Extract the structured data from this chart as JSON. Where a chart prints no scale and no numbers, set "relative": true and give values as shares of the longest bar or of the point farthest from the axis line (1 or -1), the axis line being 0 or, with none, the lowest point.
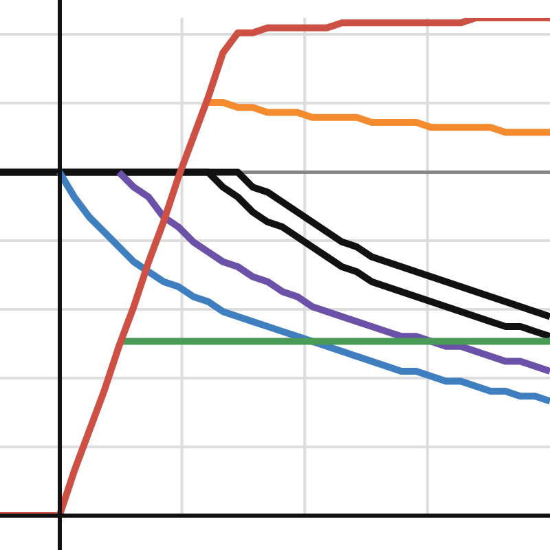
{
  "chart_data": {
    "type": "line",
    "relative": true,
    "grid": true,
    "line_style": "solid",
    "categories": [
      null,
      null,
      null,
      null,
      null,
      null,
      null,
      null,
      null,
      null,
      null,
      null,
      null,
      null,
      null,
      null,
      null,
      null,
      null,
      null,
      null,
      null,
      null,
      null,
      null,
      null,
      null,
      null,
      null,
      null,
      null,
      null,
      null,
      null,
      null,
      null,
      null,
      null
    ],
    "ref_lines": [
      {
        "axis": "y",
        "value": 0.69,
        "color": "#888888"
      }
    ],
    "series": [
      {
        "color": "#111111",
        "values": [
          0.69,
          0.69,
          0.69,
          0.69,
          0.69,
          0.69,
          0.69,
          0.69,
          0.69,
          0.69,
          0.69,
          0.69,
          0.69,
          0.69,
          0.69,
          0.66,
          0.64,
          0.61,
          0.59,
          0.58,
          0.56,
          0.54,
          0.52,
          0.5,
          0.49,
          0.47,
          0.46,
          0.45,
          0.44,
          0.43,
          0.42,
          0.41,
          0.4,
          0.39,
          0.38,
          0.38,
          0.37,
          0.36
        ]
      },
      {
        "color": "#111111",
        "values": [
          0.69,
          0.69,
          0.69,
          0.69,
          0.69,
          0.69,
          0.69,
          0.69,
          0.69,
          0.69,
          0.69,
          0.69,
          0.69,
          0.69,
          0.69,
          0.69,
          0.69,
          0.66,
          0.65,
          0.63,
          0.61,
          0.59,
          0.57,
          0.55,
          0.54,
          0.52,
          0.51,
          0.5,
          0.49,
          0.48,
          0.47,
          0.46,
          0.45,
          0.44,
          0.43,
          0.42,
          0.41,
          0.4
        ]
      },
      {
        "color": "#3f7fbf",
        "values": [
          null,
          null,
          null,
          null,
          0.69,
          0.64,
          0.6,
          0.57,
          0.54,
          0.51,
          0.49,
          0.47,
          0.46,
          0.44,
          0.43,
          0.41,
          0.4,
          0.39,
          0.38,
          0.37,
          0.36,
          0.35,
          0.34,
          0.33,
          0.32,
          0.31,
          0.3,
          0.29,
          0.29,
          0.28,
          0.27,
          0.27,
          0.26,
          0.25,
          0.25,
          0.24,
          0.24,
          0.23
        ]
      },
      {
        "color": "#6b52a8",
        "values": [
          null,
          null,
          null,
          null,
          null,
          null,
          null,
          null,
          0.69,
          0.66,
          0.64,
          0.6,
          0.58,
          0.55,
          0.53,
          0.51,
          0.5,
          0.48,
          0.47,
          0.45,
          0.44,
          0.42,
          0.41,
          0.4,
          0.39,
          0.38,
          0.37,
          0.36,
          0.36,
          0.35,
          0.34,
          0.34,
          0.33,
          0.32,
          0.31,
          0.31,
          0.3,
          0.29
        ]
      },
      {
        "color": "#4a9a58",
        "values": [
          null,
          null,
          null,
          null,
          null,
          null,
          null,
          null,
          0.35,
          0.35,
          0.35,
          0.35,
          0.35,
          0.35,
          0.35,
          0.35,
          0.35,
          0.35,
          0.35,
          0.35,
          0.35,
          0.35,
          0.35,
          0.35,
          0.35,
          0.35,
          0.35,
          0.35,
          0.35,
          0.35,
          0.35,
          0.35,
          0.35,
          0.35,
          0.35,
          0.35,
          0.35,
          0.35
        ]
      },
      {
        "color": "#f58b2f",
        "values": [
          null,
          null,
          null,
          null,
          null,
          null,
          null,
          null,
          null,
          null,
          null,
          null,
          null,
          null,
          0.83,
          0.83,
          0.82,
          0.82,
          0.81,
          0.81,
          0.81,
          0.8,
          0.8,
          0.8,
          0.8,
          0.79,
          0.79,
          0.79,
          0.79,
          0.78,
          0.78,
          0.78,
          0.78,
          0.78,
          0.77,
          0.77,
          0.77,
          0.77
        ]
      },
      {
        "color": "#cc5044",
        "values": [
          0,
          0,
          0,
          0,
          0,
          0.09,
          0.17,
          0.25,
          0.34,
          0.42,
          0.51,
          0.59,
          0.68,
          0.76,
          0.84,
          0.93,
          0.97,
          0.97,
          0.98,
          0.98,
          0.98,
          0.98,
          0.98,
          0.99,
          0.99,
          0.99,
          0.99,
          0.99,
          0.99,
          0.99,
          0.99,
          0.99,
          1.0,
          1.0,
          1.0,
          1.0,
          1.0,
          1.0
        ]
      }
    ]
  }
}
